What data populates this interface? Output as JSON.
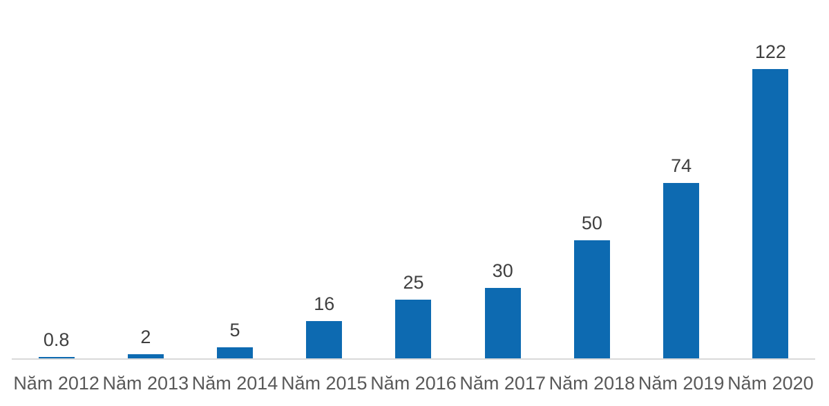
{
  "chart_data": {
    "type": "bar",
    "categories": [
      "Năm 2012",
      "Năm 2013",
      "Năm 2014",
      "Năm 2015",
      "Năm 2016",
      "Năm 2017",
      "Năm 2018",
      "Năm 2019",
      "Năm 2020"
    ],
    "values": [
      0.8,
      2,
      5,
      16,
      25,
      30,
      50,
      74,
      122
    ],
    "value_labels": [
      "0.8",
      "2",
      "5",
      "16",
      "25",
      "30",
      "50",
      "74",
      "122"
    ],
    "ylim": [
      0,
      130
    ],
    "grid": false,
    "legend": false,
    "bar_color": "#0d6ab1",
    "axis_line_color": "#d9d9d9",
    "value_label_color": "#3f3f3f",
    "category_label_color": "#595959",
    "background_color": "#ffffff"
  }
}
